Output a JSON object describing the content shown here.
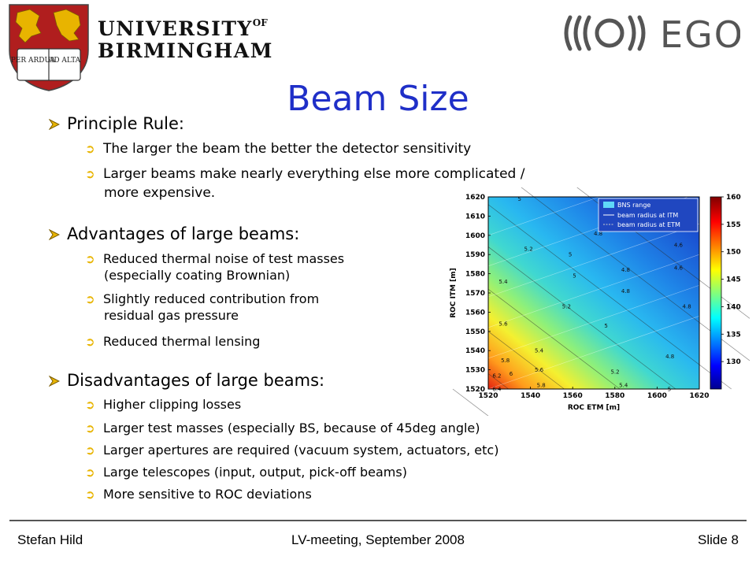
{
  "header": {
    "university_line1": "UNIVERSITY",
    "university_of": "OF",
    "university_line2": "BIRMINGHAM",
    "crest_motto_left": "PER ARDUA",
    "crest_motto_right": "AD ALTA",
    "ego_text": "EGO"
  },
  "slide": {
    "title": "Beam Size",
    "sections": [
      {
        "heading": "Principle Rule:",
        "items": [
          "The larger the beam the better the detector sensitivity",
          "Larger beams make nearly everything else more complicated /",
          "more expensive."
        ]
      },
      {
        "heading": "Advantages of large beams:",
        "items": [
          "Reduced thermal noise of test masses",
          "(especially coating Brownian)",
          "Slightly reduced contribution from",
          "residual gas pressure",
          "Reduced thermal lensing"
        ]
      },
      {
        "heading": "Disadvantages of large beams:",
        "items": [
          "Higher clipping losses",
          "Larger test masses (especially BS, because of 45deg angle)",
          "Larger apertures are required (vacuum system, actuators, etc)",
          "Large telescopes (input, output, pick-off beams)",
          "More sensitive to ROC deviations"
        ]
      }
    ]
  },
  "chart_data": {
    "type": "heatmap",
    "xlabel": "ROC ETM [m]",
    "ylabel": "ROC ITM [m]",
    "xlim": [
      1520,
      1620
    ],
    "ylim": [
      1520,
      1620
    ],
    "xticks": [
      1520,
      1540,
      1560,
      1580,
      1600,
      1620
    ],
    "yticks": [
      1520,
      1530,
      1540,
      1550,
      1560,
      1570,
      1580,
      1590,
      1600,
      1610,
      1620
    ],
    "colorbar": {
      "min": 125,
      "max": 160,
      "ticks": [
        130,
        135,
        140,
        145,
        150,
        155,
        160
      ]
    },
    "legend": {
      "placement": "top-right",
      "entries": [
        "BNS range",
        "beam radius at ITM",
        "beam radius at ETM"
      ]
    },
    "contour_labels": [
      {
        "text": "5",
        "x": 1534,
        "y": 1618
      },
      {
        "text": "4.8",
        "x": 1570,
        "y": 1600
      },
      {
        "text": "5.2",
        "x": 1537,
        "y": 1592
      },
      {
        "text": "5",
        "x": 1558,
        "y": 1589
      },
      {
        "text": "4.6",
        "x": 1608,
        "y": 1594
      },
      {
        "text": "4.8",
        "x": 1583,
        "y": 1581
      },
      {
        "text": "4.6",
        "x": 1608,
        "y": 1582
      },
      {
        "text": "5",
        "x": 1560,
        "y": 1578
      },
      {
        "text": "5.4",
        "x": 1525,
        "y": 1575
      },
      {
        "text": "4.8",
        "x": 1583,
        "y": 1570
      },
      {
        "text": "5.2",
        "x": 1555,
        "y": 1562
      },
      {
        "text": "4.8",
        "x": 1612,
        "y": 1562
      },
      {
        "text": "5.6",
        "x": 1525,
        "y": 1553
      },
      {
        "text": "5",
        "x": 1575,
        "y": 1552
      },
      {
        "text": "5.4",
        "x": 1542,
        "y": 1539
      },
      {
        "text": "5.8",
        "x": 1526,
        "y": 1534
      },
      {
        "text": "4.8",
        "x": 1604,
        "y": 1536
      },
      {
        "text": "5.6",
        "x": 1542,
        "y": 1529
      },
      {
        "text": "5.2",
        "x": 1578,
        "y": 1528
      },
      {
        "text": "6",
        "x": 1530,
        "y": 1527
      },
      {
        "text": "6.2",
        "x": 1522,
        "y": 1526
      },
      {
        "text": "5.8",
        "x": 1543,
        "y": 1521
      },
      {
        "text": "5.4",
        "x": 1582,
        "y": 1521
      },
      {
        "text": "5",
        "x": 1605,
        "y": 1519
      },
      {
        "text": "6.4",
        "x": 1522,
        "y": 1519
      }
    ]
  },
  "footer": {
    "author": "Stefan Hild",
    "meeting": "LV-meeting, September 2008",
    "slide_number": "Slide 8"
  },
  "colors": {
    "title": "#1f2fc8",
    "bullet_marker": "#e8b400",
    "crest_red": "#b01e1e",
    "crest_gold": "#e8b400"
  }
}
